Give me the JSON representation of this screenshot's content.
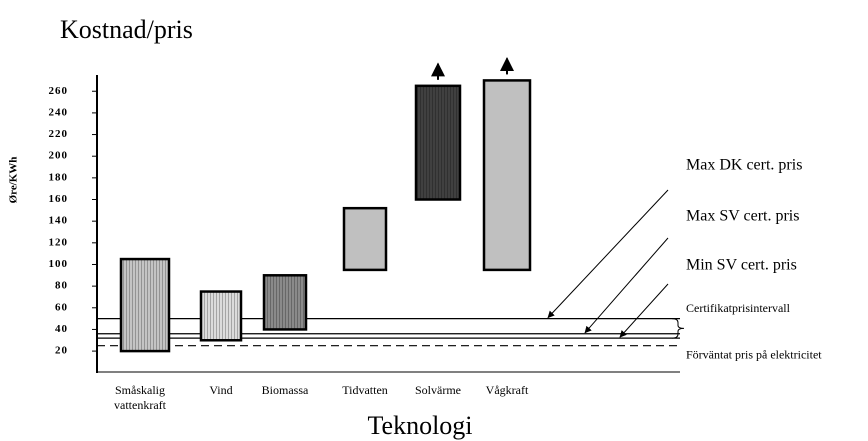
{
  "chart_data": {
    "type": "floating-bar",
    "title": "Kostnad/pris",
    "y_label": "Øre/KWh",
    "x_label": "Teknologi",
    "categories": [
      "Småskalig vattenkraft",
      "Vind",
      "Biomassa",
      "Tidvatten",
      "Solvärme",
      "Vågkraft"
    ],
    "low": [
      20,
      30,
      40,
      95,
      160,
      95
    ],
    "high": [
      105,
      75,
      90,
      152,
      265,
      270
    ],
    "colors": [
      "#c4c4c4",
      "#dcdcdc",
      "#8a8a8a",
      "#c0c0c0",
      "#404040",
      "#c0c0c0"
    ],
    "striped": [
      true,
      true,
      true,
      false,
      true,
      false
    ],
    "open_ended": [
      false,
      false,
      false,
      false,
      true,
      true
    ],
    "ylim": [
      0,
      275
    ],
    "yticks": [
      20,
      40,
      60,
      80,
      100,
      120,
      140,
      160,
      180,
      200,
      220,
      240,
      260
    ],
    "reference_lines": [
      {
        "label": "Max DK cert. pris",
        "value": 50,
        "style": "solid"
      },
      {
        "label": "Max SV cert. pris",
        "value": 36,
        "style": "solid"
      },
      {
        "label": "Min SV cert. pris",
        "value": 32,
        "style": "solid"
      },
      {
        "label": "Förväntat pris på elektricitet",
        "value": 25,
        "style": "dashed"
      }
    ],
    "interval_label": "Certifikatprisintervall"
  }
}
